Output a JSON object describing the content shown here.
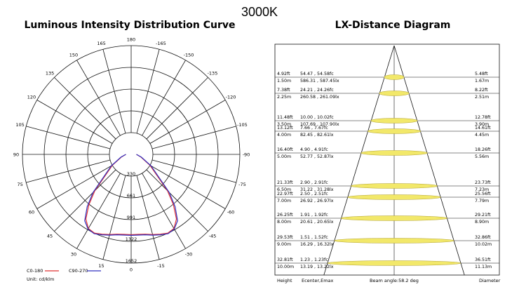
{
  "page_title": "3000K",
  "chart_data": [
    {
      "type": "polar",
      "title": "Luminous Intensity Distribution Curve",
      "angle_labels": [
        "180",
        "165",
        "150",
        "135",
        "120",
        "105",
        "90",
        "75",
        "60",
        "45",
        "30",
        "15",
        "0",
        "-15",
        "-30",
        "-45",
        "-60",
        "-75",
        "-90",
        "-105",
        "-120",
        "-135",
        "-150",
        "-165"
      ],
      "radial_labels": [
        "330",
        "661",
        "991",
        "1322",
        "1652"
      ],
      "radial_max": 1652,
      "unit": "Unit: cd/klm",
      "series": [
        {
          "name": "C0-180",
          "color": "#e03030",
          "angles": [
            -90,
            -75,
            -60,
            -45,
            -40,
            -35,
            -30,
            -25,
            -20,
            -15,
            -10,
            -5,
            0,
            5,
            10,
            15,
            20,
            25,
            30,
            35,
            40,
            45,
            60,
            75,
            90
          ],
          "values": [
            80,
            150,
            330,
            780,
            1000,
            1200,
            1300,
            1320,
            1290,
            1260,
            1230,
            1220,
            1220,
            1220,
            1230,
            1260,
            1290,
            1320,
            1300,
            1200,
            1000,
            780,
            330,
            150,
            80
          ]
        },
        {
          "name": "C90-270",
          "color": "#3030c0",
          "angles": [
            -90,
            -75,
            -60,
            -45,
            -40,
            -35,
            -30,
            -25,
            -20,
            -15,
            -10,
            -5,
            0,
            5,
            10,
            15,
            20,
            25,
            30,
            35,
            40,
            45,
            60,
            75,
            90
          ],
          "values": [
            80,
            160,
            350,
            820,
            1040,
            1230,
            1310,
            1330,
            1300,
            1270,
            1240,
            1230,
            1230,
            1230,
            1240,
            1270,
            1300,
            1330,
            1310,
            1230,
            1040,
            820,
            350,
            160,
            80
          ]
        }
      ]
    },
    {
      "type": "table",
      "title": "LX-Distance Diagram",
      "beam_angle": "Beam angle:58.2 deg",
      "footer": {
        "height": "Height",
        "ecenter": "Ecenter,Emax",
        "beam": "Beam angle:58.2 deg",
        "diameter": "Diameter"
      },
      "rows": [
        {
          "h_ft": "4.92ft",
          "h_m": "1.50m",
          "fc": "54.47 , 54.58fc",
          "lx": "586.31 , 587.45lx",
          "d_ft": "5.48ft",
          "d_m": "1.67m"
        },
        {
          "h_ft": "7.38ft",
          "h_m": "2.25m",
          "fc": "24.21 , 24.26fc",
          "lx": "260.58 , 261.09lx",
          "d_ft": "8.22ft",
          "d_m": "2.51m"
        },
        {
          "h_ft": "11.48ft",
          "h_m": "3.50m",
          "fc": "10.00 , 10.02fc",
          "lx": "107.69 , 107.90lx",
          "d_ft": "12.78ft",
          "d_m": "3.90m"
        },
        {
          "h_ft": "13.12ft",
          "h_m": "4.00m",
          "fc": "7.66 , 7.67fc",
          "lx": "82.45 , 82.61lx",
          "d_ft": "14.61ft",
          "d_m": "4.45m"
        },
        {
          "h_ft": "16.40ft",
          "h_m": "5.00m",
          "fc": "4.90 , 4.91fc",
          "lx": "52.77 , 52.87lx",
          "d_ft": "18.26ft",
          "d_m": "5.56m"
        },
        {
          "h_ft": "21.33ft",
          "h_m": "6.50m",
          "fc": "2.90 , 2.91fc",
          "lx": "31.22 , 31.28lx",
          "d_ft": "23.73ft",
          "d_m": "7.23m"
        },
        {
          "h_ft": "22.97ft",
          "h_m": "7.00m",
          "fc": "2.50 , 2.51fc",
          "lx": "26.92 , 26.97lx",
          "d_ft": "25.56ft",
          "d_m": "7.79m"
        },
        {
          "h_ft": "26.25ft",
          "h_m": "8.00m",
          "fc": "1.91 , 1.92fc",
          "lx": "20.61 , 20.65lx",
          "d_ft": "29.21ft",
          "d_m": "8.90m"
        },
        {
          "h_ft": "29.53ft",
          "h_m": "9.00m",
          "fc": "1.51 , 1.52fc",
          "lx": "16.29 , 16.32lx",
          "d_ft": "32.86ft",
          "d_m": "10.02m"
        },
        {
          "h_ft": "32.81ft",
          "h_m": "10.00m",
          "fc": "1.23 , 1.23fc",
          "lx": "13.19 , 13.22lx",
          "d_ft": "36.51ft",
          "d_m": "11.13m"
        }
      ]
    }
  ]
}
